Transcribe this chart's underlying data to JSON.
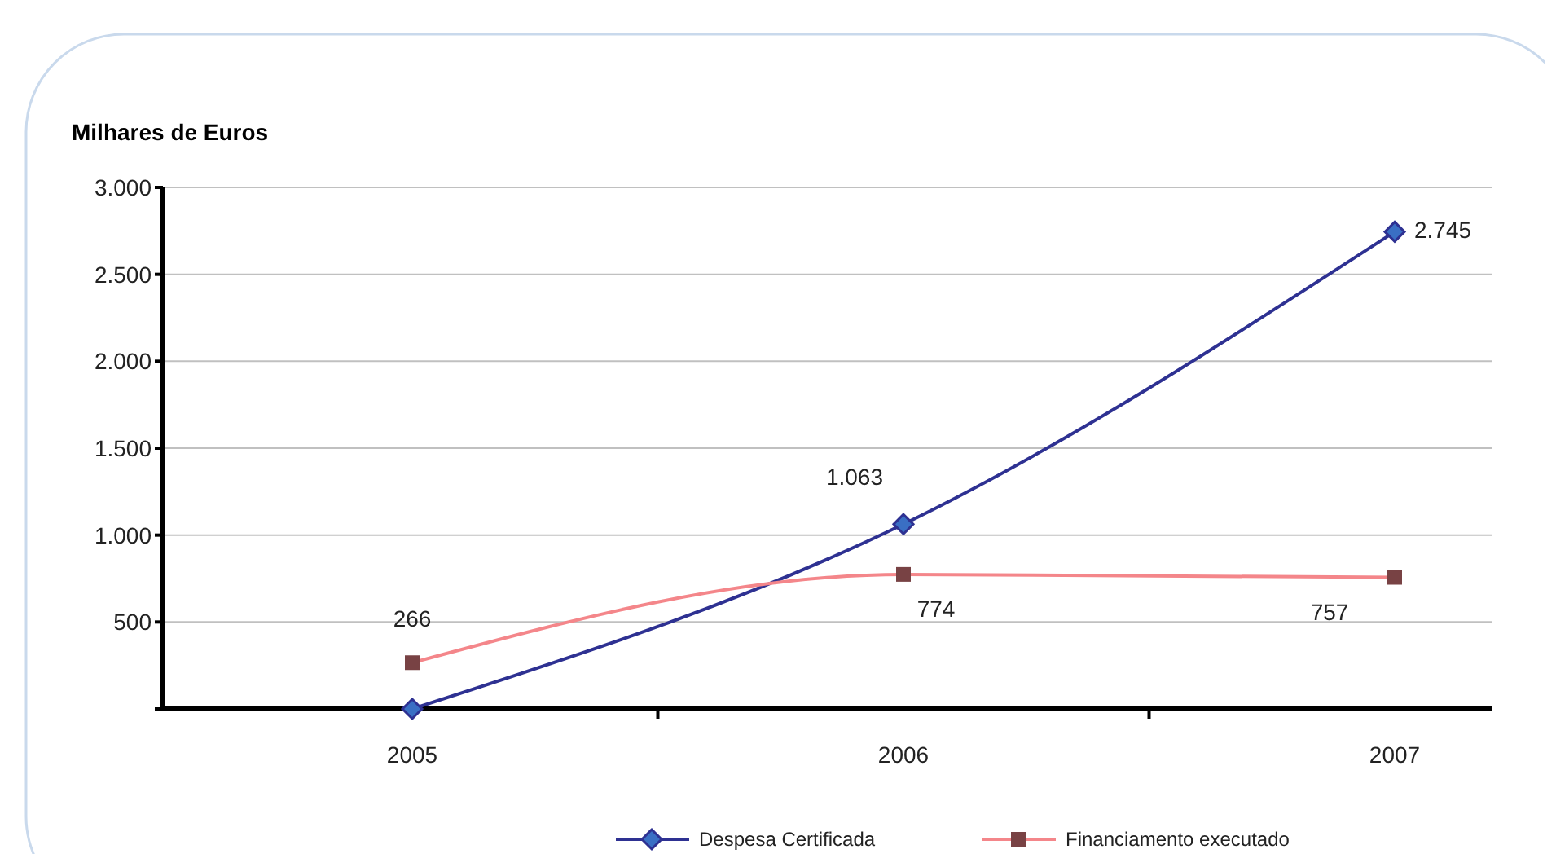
{
  "chart_data": {
    "type": "line",
    "ylabel": "Milhares de Euros",
    "categories": [
      "2005",
      "2006",
      "2007"
    ],
    "series": [
      {
        "name": "Despesa Certificada",
        "color": "#2e3192",
        "marker": "diamond",
        "values": [
          0,
          1063,
          2745
        ],
        "value_labels": [
          null,
          "1.063",
          "2.745"
        ]
      },
      {
        "name": "Financiamento executado",
        "color": "#f4868a",
        "marker": "square",
        "values": [
          266,
          774,
          757
        ],
        "value_labels": [
          "266",
          "774",
          "757"
        ]
      }
    ],
    "ylim": [
      0,
      3000
    ],
    "yticks": [
      {
        "value": 0,
        "label": null
      },
      500,
      {
        "value": 1000,
        "label": "1.000"
      },
      {
        "value": 1500,
        "label": "1.500"
      },
      {
        "value": 2000,
        "label": "2.000"
      },
      {
        "value": 2500,
        "label": "2.500"
      },
      {
        "value": 3000,
        "label": "3.000"
      }
    ],
    "grid": "y",
    "legend": "bottom"
  }
}
